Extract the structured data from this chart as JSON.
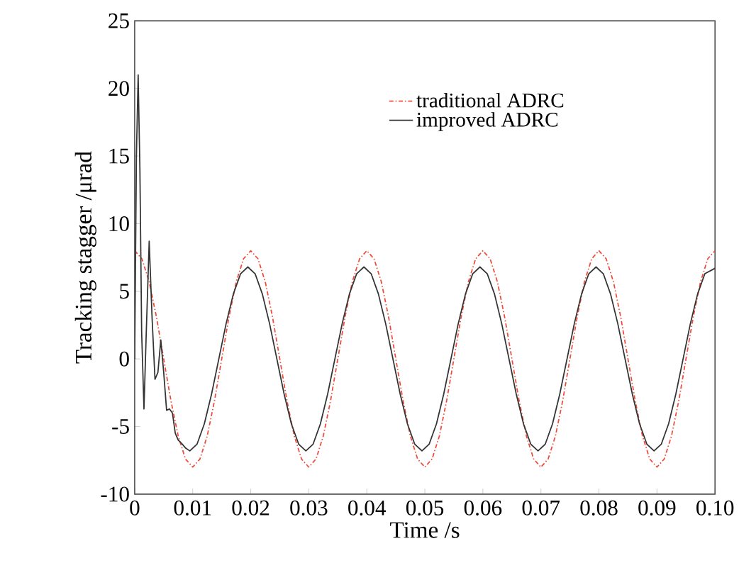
{
  "chart_data": {
    "type": "line",
    "xlabel": "Time /s",
    "ylabel": "Tracking stagger /μrad",
    "xlim": [
      0,
      0.1
    ],
    "ylim": [
      -10,
      25
    ],
    "xticks": [
      0,
      0.01,
      0.02,
      0.03,
      0.04,
      0.05,
      0.06,
      0.07,
      0.08,
      0.09,
      {
        "value": 0.1,
        "label": "0.10"
      }
    ],
    "yticks": [
      -10,
      -5,
      0,
      5,
      10,
      15,
      20,
      25
    ],
    "grid": false,
    "legend": "top right",
    "series": [
      {
        "name": "traditional ADRC",
        "color": "#f04a3a",
        "line_style": "dashdot",
        "x": [
          0,
          0.00125,
          0.0025,
          0.00375,
          0.005,
          0.00625,
          0.0075,
          0.00875,
          0.01,
          0.01125,
          0.0125,
          0.01375,
          0.015,
          0.01625,
          0.0175,
          0.01875,
          0.02,
          0.02125,
          0.0225,
          0.02375,
          0.025,
          0.02625,
          0.0275,
          0.02875,
          0.03,
          0.03125,
          0.0325,
          0.03375,
          0.035,
          0.03625,
          0.0375,
          0.03875,
          0.04,
          0.04125,
          0.0425,
          0.04375,
          0.045,
          0.04625,
          0.0475,
          0.04875,
          0.05,
          0.05125,
          0.0525,
          0.05375,
          0.055,
          0.05625,
          0.0575,
          0.05875,
          0.06,
          0.06125,
          0.0625,
          0.06375,
          0.065,
          0.06625,
          0.0675,
          0.06875,
          0.07,
          0.07125,
          0.0725,
          0.07375,
          0.075,
          0.07625,
          0.0775,
          0.07875,
          0.08,
          0.08125,
          0.0825,
          0.08375,
          0.085,
          0.08625,
          0.0875,
          0.08875,
          0.09,
          0.09125,
          0.0925,
          0.09375,
          0.095,
          0.09625,
          0.0975,
          0.09875,
          0.1
        ],
        "values": [
          8,
          7.4,
          5.7,
          3.1,
          0,
          -3.1,
          -5.7,
          -7.4,
          -8,
          -7.4,
          -5.7,
          -3.1,
          0,
          3.1,
          5.7,
          7.4,
          8,
          7.4,
          5.7,
          3.1,
          0,
          -3.1,
          -5.7,
          -7.4,
          -8,
          -7.4,
          -5.7,
          -3.1,
          0,
          3.1,
          5.7,
          7.4,
          8,
          7.4,
          5.7,
          3.1,
          0,
          -3.1,
          -5.7,
          -7.4,
          -8,
          -7.4,
          -5.7,
          -3.1,
          0,
          3.1,
          5.7,
          7.4,
          8,
          7.4,
          5.7,
          3.1,
          0,
          -3.1,
          -5.7,
          -7.4,
          -8,
          -7.4,
          -5.7,
          -3.1,
          0,
          3.1,
          5.7,
          7.4,
          8,
          7.4,
          5.7,
          3.1,
          0,
          -3.1,
          -5.7,
          -7.4,
          -8,
          -7.4,
          -5.7,
          -3.1,
          0,
          3.1,
          5.7,
          7.4,
          8
        ]
      },
      {
        "name": "improved ADRC",
        "color": "#333333",
        "line_style": "solid",
        "x": [
          0,
          0.0003,
          0.0006,
          0.0009,
          0.0012,
          0.0016,
          0.002,
          0.0025,
          0.003,
          0.0035,
          0.004,
          0.0045,
          0.005,
          0.0055,
          0.006,
          0.0065,
          0.007,
          0.0075,
          0.0082,
          0.0088,
          0.0095,
          0.01075,
          0.012,
          0.01325,
          0.0145,
          0.01575,
          0.017,
          0.01825,
          0.0195,
          0.02075,
          0.022,
          0.02325,
          0.0245,
          0.02575,
          0.027,
          0.02825,
          0.0295,
          0.03075,
          0.032,
          0.03325,
          0.0345,
          0.03575,
          0.037,
          0.03825,
          0.0395,
          0.04075,
          0.042,
          0.04325,
          0.0445,
          0.04575,
          0.047,
          0.04825,
          0.0495,
          0.05075,
          0.052,
          0.05325,
          0.0545,
          0.05575,
          0.057,
          0.05825,
          0.0595,
          0.06075,
          0.062,
          0.06325,
          0.0645,
          0.06575,
          0.067,
          0.06825,
          0.0695,
          0.07075,
          0.072,
          0.07325,
          0.0745,
          0.07575,
          0.077,
          0.07825,
          0.0795,
          0.08075,
          0.082,
          0.08325,
          0.0845,
          0.08575,
          0.087,
          0.08825,
          0.0895,
          0.09075,
          0.092,
          0.09325,
          0.0945,
          0.09575,
          0.097,
          0.09825,
          0.1
        ],
        "values": [
          0,
          15,
          21,
          14,
          2,
          -3.7,
          2,
          8.7,
          3,
          -1.5,
          -1,
          1.4,
          -1,
          -3.8,
          -3.7,
          -4,
          -5.5,
          -6,
          -6.3,
          -6.6,
          -6.8,
          -6.3,
          -4.8,
          -2.6,
          0,
          2.6,
          4.8,
          6.3,
          6.8,
          6.3,
          4.8,
          2.6,
          0,
          -2.6,
          -4.8,
          -6.3,
          -6.8,
          -6.3,
          -4.8,
          -2.6,
          0,
          2.6,
          4.8,
          6.3,
          6.8,
          6.3,
          4.8,
          2.6,
          0,
          -2.6,
          -4.8,
          -6.3,
          -6.8,
          -6.3,
          -4.8,
          -2.6,
          0,
          2.6,
          4.8,
          6.3,
          6.8,
          6.3,
          4.8,
          2.6,
          0,
          -2.6,
          -4.8,
          -6.3,
          -6.8,
          -6.3,
          -4.8,
          -2.6,
          0,
          2.6,
          4.8,
          6.3,
          6.8,
          6.3,
          4.8,
          2.6,
          0,
          -2.6,
          -4.8,
          -6.3,
          -6.8,
          -6.3,
          -4.8,
          -2.6,
          0,
          2.6,
          4.8,
          6.3,
          6.7
        ]
      }
    ]
  }
}
